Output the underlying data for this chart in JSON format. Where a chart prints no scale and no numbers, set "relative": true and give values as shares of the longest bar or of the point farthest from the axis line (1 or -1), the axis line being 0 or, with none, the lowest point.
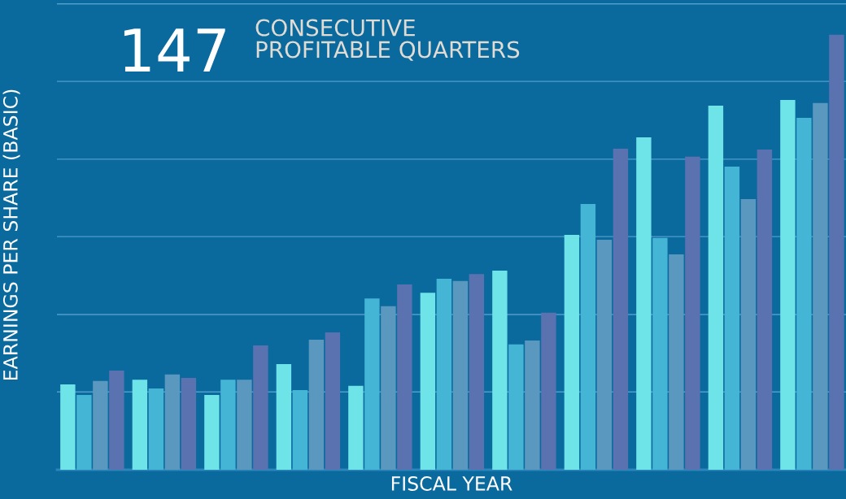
{
  "chart_data": {
    "type": "bar",
    "title": "147",
    "subtitle": "CONSECUTIVE\nPROFITABLE QUARTERS",
    "xlabel": "FISCAL YEAR",
    "ylabel": "EARNINGS PER SHARE (BASIC)",
    "relative": true,
    "ref_lines": [
      {
        "axis": "y",
        "value": 0.179,
        "color": "#4f9ecb"
      },
      {
        "axis": "y",
        "value": 0.357,
        "color": "#4f9ecb"
      },
      {
        "axis": "y",
        "value": 0.536,
        "color": "#4f9ecb"
      },
      {
        "axis": "y",
        "value": 0.714,
        "color": "#4f9ecb"
      },
      {
        "axis": "y",
        "value": 0.893,
        "color": "#4f9ecb"
      },
      {
        "axis": "y",
        "value": 1.071,
        "color": "#4f9ecb"
      }
    ],
    "categories": [
      null,
      null,
      null,
      null,
      null,
      null,
      null,
      null,
      null,
      null,
      null
    ],
    "series": [
      {
        "color": "#6ee4e8",
        "values": [
          0.196,
          0.207,
          0.172,
          0.243,
          0.193,
          0.407,
          0.458,
          0.54,
          0.764,
          0.837,
          0.85
        ]
      },
      {
        "color": "#45b5d6",
        "values": [
          0.172,
          0.187,
          0.207,
          0.183,
          0.394,
          0.439,
          0.288,
          0.611,
          0.533,
          0.697,
          0.809
        ]
      },
      {
        "color": "#5a98c0",
        "values": [
          0.204,
          0.219,
          0.207,
          0.299,
          0.376,
          0.434,
          0.297,
          0.529,
          0.495,
          0.622,
          0.843
        ]
      },
      {
        "color": "#5b72b0",
        "values": [
          0.228,
          0.211,
          0.286,
          0.316,
          0.426,
          0.45,
          0.361,
          0.738,
          0.72,
          0.736,
          1.0
        ]
      }
    ]
  }
}
